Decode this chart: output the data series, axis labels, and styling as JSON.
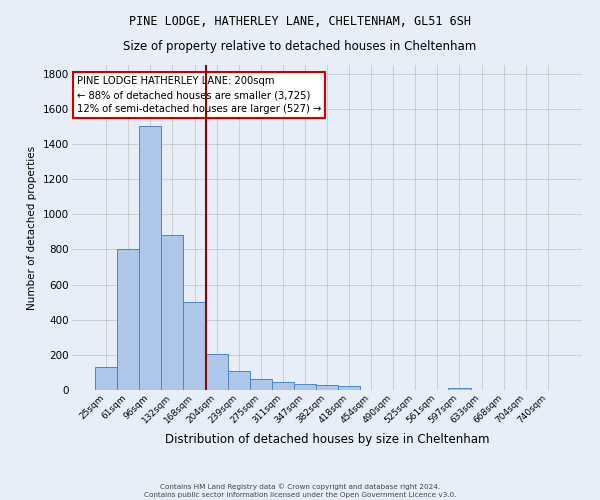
{
  "title": "PINE LODGE, HATHERLEY LANE, CHELTENHAM, GL51 6SH",
  "subtitle": "Size of property relative to detached houses in Cheltenham",
  "xlabel": "Distribution of detached houses by size in Cheltenham",
  "ylabel": "Number of detached properties",
  "categories": [
    "25sqm",
    "61sqm",
    "96sqm",
    "132sqm",
    "168sqm",
    "204sqm",
    "239sqm",
    "275sqm",
    "311sqm",
    "347sqm",
    "382sqm",
    "418sqm",
    "454sqm",
    "490sqm",
    "525sqm",
    "561sqm",
    "597sqm",
    "633sqm",
    "668sqm",
    "704sqm",
    "740sqm"
  ],
  "values": [
    130,
    800,
    1500,
    880,
    500,
    205,
    110,
    65,
    48,
    35,
    27,
    20,
    0,
    0,
    0,
    0,
    12,
    0,
    0,
    0,
    0
  ],
  "bar_color": "#aec6e8",
  "bar_edge_color": "#4a86c8",
  "background_color": "#e8eef8",
  "grid_color": "#c8c8c8",
  "annotation_text": "PINE LODGE HATHERLEY LANE: 200sqm\n← 88% of detached houses are smaller (3,725)\n12% of semi-detached houses are larger (527) →",
  "annotation_box_color": "#ffffff",
  "annotation_box_edge_color": "#cc0000",
  "ylim": [
    0,
    1850
  ],
  "yticks": [
    0,
    200,
    400,
    600,
    800,
    1000,
    1200,
    1400,
    1600,
    1800
  ],
  "red_line_index": 4.5,
  "footer_line1": "Contains HM Land Registry data © Crown copyright and database right 2024.",
  "footer_line2": "Contains public sector information licensed under the Open Government Licence v3.0."
}
